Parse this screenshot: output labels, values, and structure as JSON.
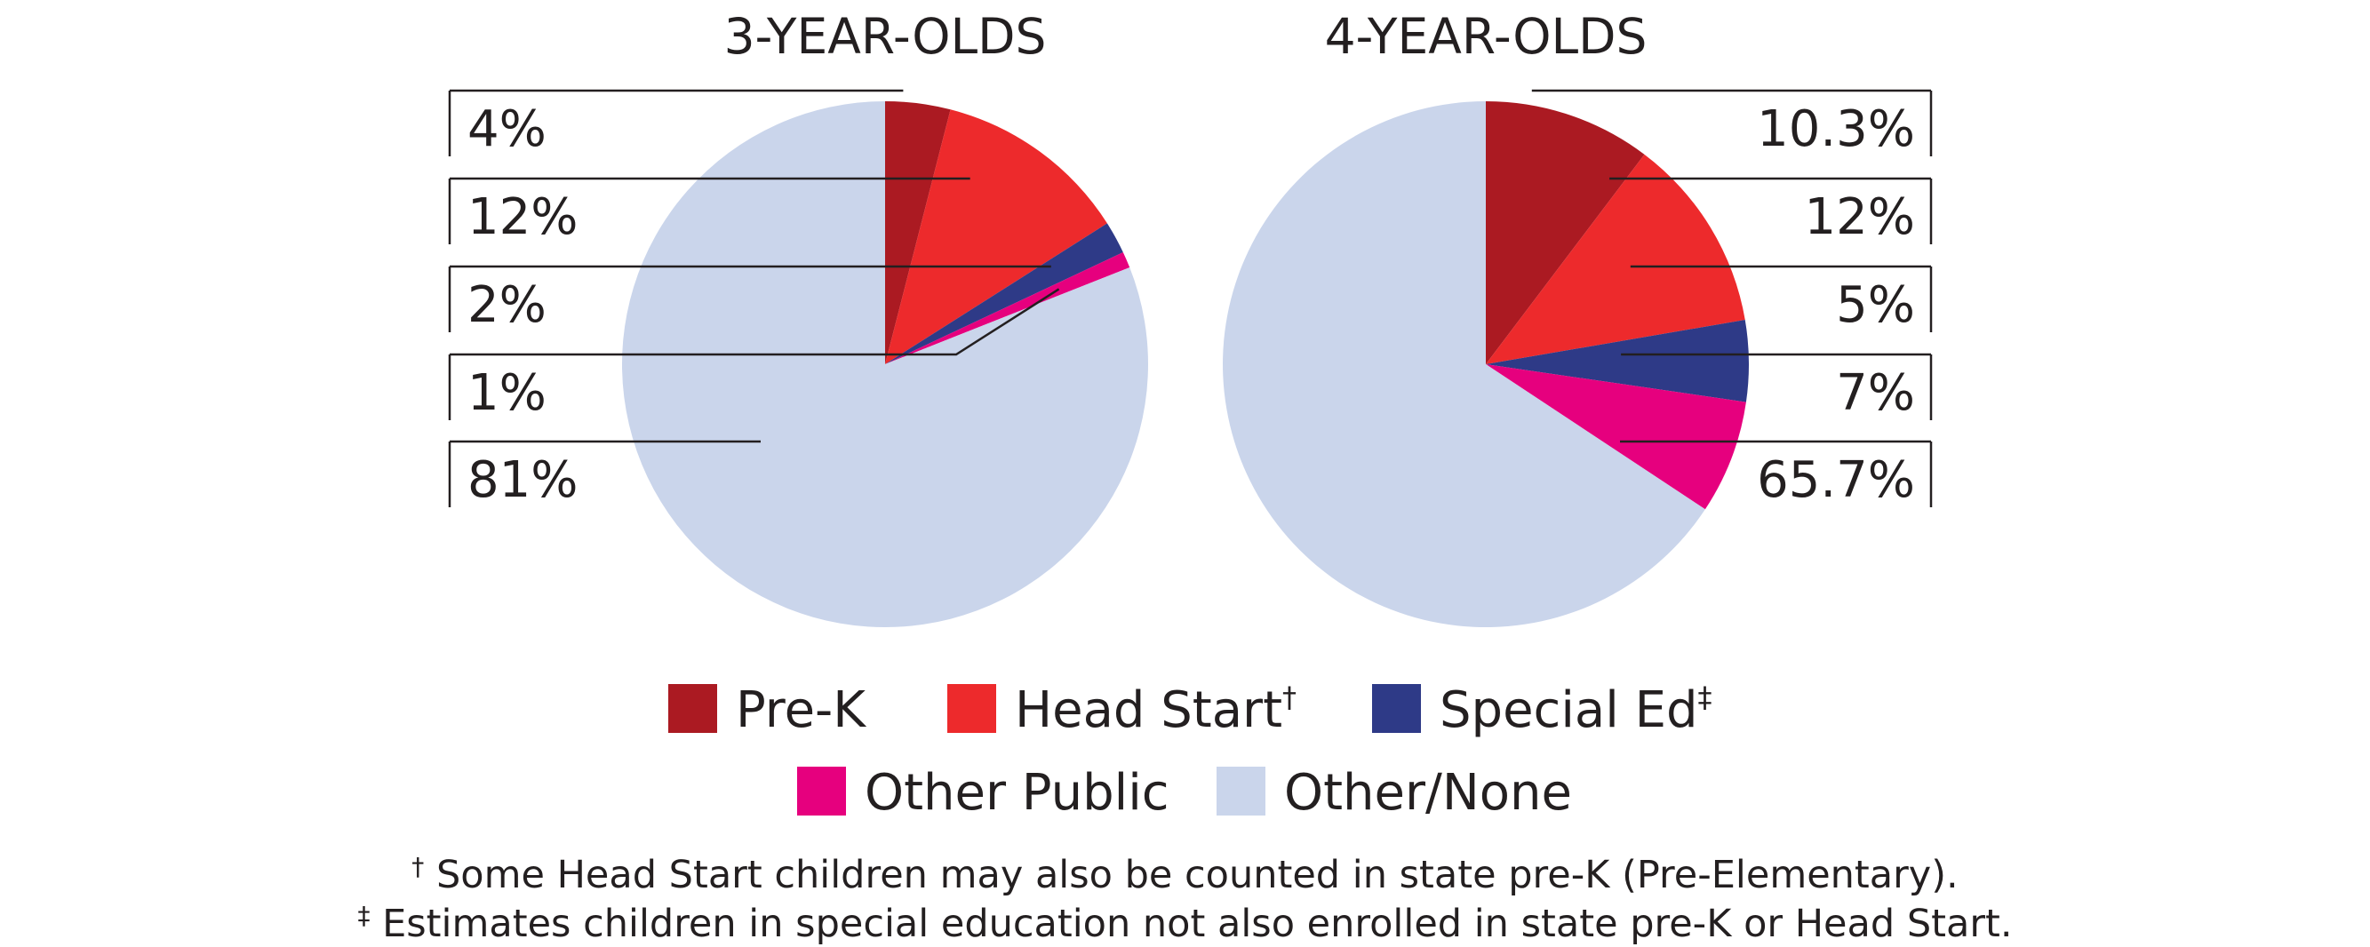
{
  "categories": [
    "Pre-K",
    "Head Start",
    "Special Ed",
    "Other Public",
    "Other/None"
  ],
  "colors": {
    "Pre-K": "#ab1a22",
    "Head Start": "#ed2a2c",
    "Special Ed": "#2e3a87",
    "Other Public": "#e6007e",
    "Other/None": "#cad5eb",
    "leader_line": "#231f20"
  },
  "chart_data": [
    {
      "type": "pie",
      "title": "3-YEAR-OLDS",
      "slices": [
        {
          "category": "Pre-K",
          "value": 4,
          "label": "4%"
        },
        {
          "category": "Head Start",
          "value": 12,
          "label": "12%"
        },
        {
          "category": "Special Ed",
          "value": 2,
          "label": "2%"
        },
        {
          "category": "Other Public",
          "value": 1,
          "label": "1%"
        },
        {
          "category": "Other/None",
          "value": 81,
          "label": "81%"
        }
      ]
    },
    {
      "type": "pie",
      "title": "4-YEAR-OLDS",
      "slices": [
        {
          "category": "Pre-K",
          "value": 10.3,
          "label": "10.3%"
        },
        {
          "category": "Head Start",
          "value": 12,
          "label": "12%"
        },
        {
          "category": "Special Ed",
          "value": 5,
          "label": "5%"
        },
        {
          "category": "Other Public",
          "value": 7,
          "label": "7%"
        },
        {
          "category": "Other/None",
          "value": 65.7,
          "label": "65.7%"
        }
      ]
    }
  ],
  "legend": {
    "items": [
      {
        "category": "Pre-K",
        "label": "Pre-K",
        "mark": ""
      },
      {
        "category": "Head Start",
        "label": "Head Start",
        "mark": "†"
      },
      {
        "category": "Special Ed",
        "label": "Special Ed",
        "mark": "‡"
      },
      {
        "category": "Other Public",
        "label": "Other Public",
        "mark": ""
      },
      {
        "category": "Other/None",
        "label": "Other/None",
        "mark": ""
      }
    ]
  },
  "footnotes": [
    {
      "symbol": "†",
      "text": " Some Head Start children may also be counted in state pre-K (Pre-Elementary)."
    },
    {
      "symbol": "‡",
      "text": " Estimates children in special education not also enrolled in state pre-K or Head Start."
    }
  ]
}
